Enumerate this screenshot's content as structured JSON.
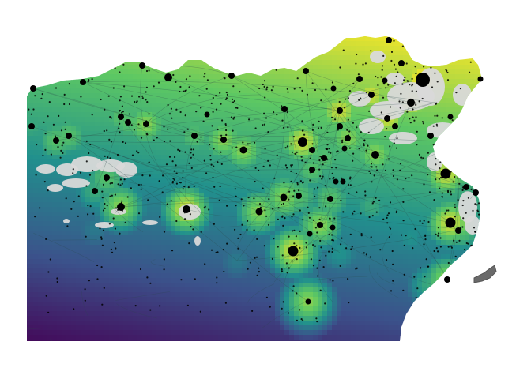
{
  "map": {
    "type": "heatmap-with-points",
    "colormap": "viridis",
    "colormap_stops": [
      "#440154",
      "#3b528b",
      "#21908d",
      "#5dc863",
      "#fde725"
    ],
    "nodata_color": "#d9d9d9",
    "land_outside_color": "#555555",
    "road_color": "#2a4a4a",
    "point_color": "#000000",
    "background": "#ffffff",
    "hubs_large": 3,
    "hubs_medium": 60,
    "settlements_small": 900
  }
}
